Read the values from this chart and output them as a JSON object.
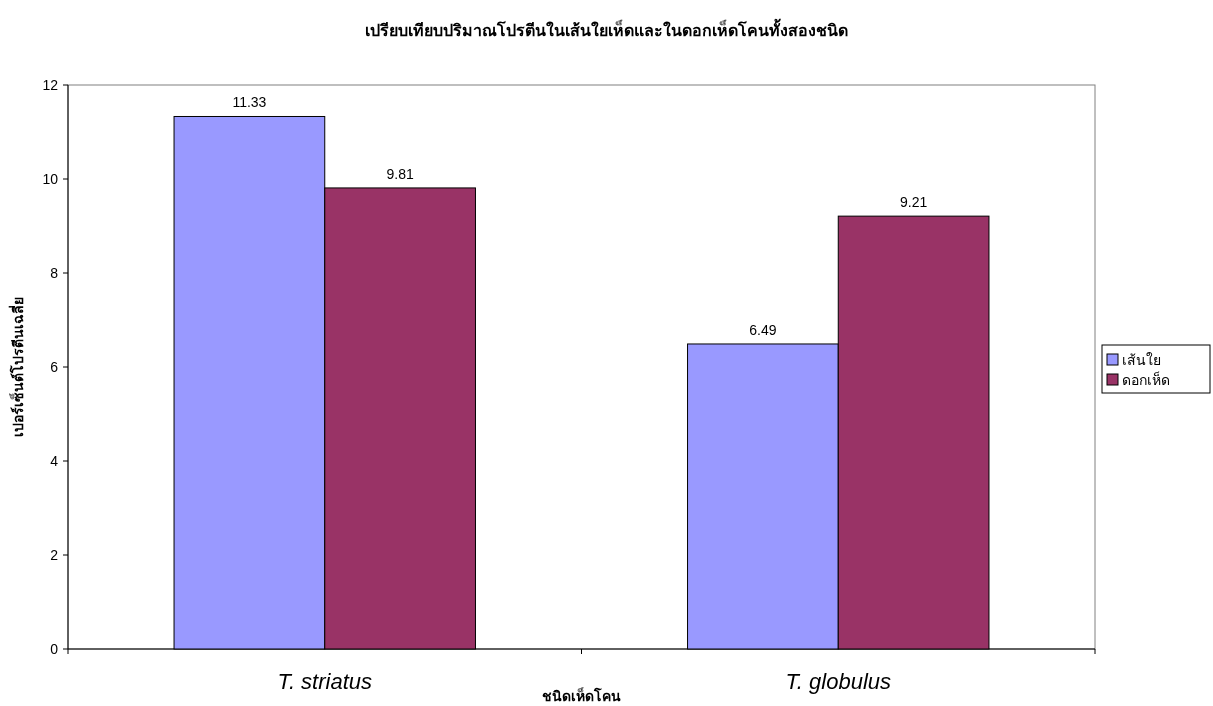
{
  "chart_data": {
    "type": "bar",
    "title": "เปรียบเทียบปริมาณโปรตีนในเส้นใยเห็ดและในดอกเห็ดโคนทั้งสองชนิด",
    "xlabel": "ชนิดเห็ดโคน",
    "ylabel": "เปอร์เซ็นต์โปรตีนเฉลี่ย",
    "categories": [
      "T. striatus",
      "T. globulus"
    ],
    "series": [
      {
        "name": "เส้นใย",
        "color": "#9999ff",
        "values": [
          11.33,
          6.49
        ]
      },
      {
        "name": "ดอกเห็ด",
        "color": "#993366",
        "values": [
          9.81,
          9.21
        ]
      }
    ],
    "ylim": [
      0,
      12
    ],
    "yticks": [
      0,
      2,
      4,
      6,
      8,
      10,
      12
    ],
    "grid": false,
    "legend": "right",
    "data_labels": true
  }
}
